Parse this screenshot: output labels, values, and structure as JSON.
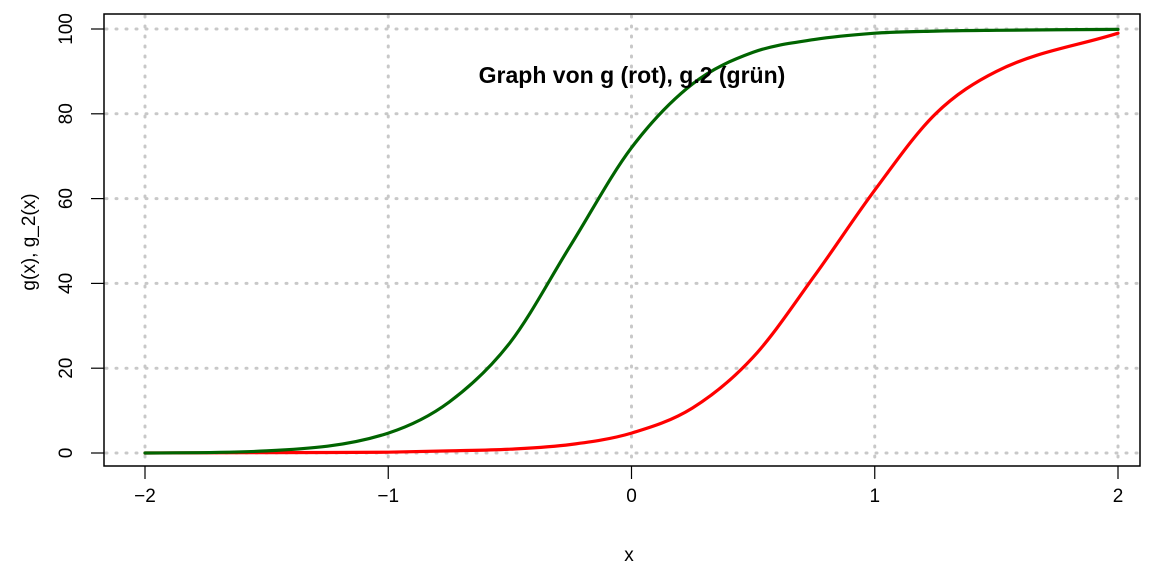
{
  "chart_data": {
    "type": "line",
    "title": "Graph von g (rot), g.2 (grün)",
    "xlabel": "x",
    "ylabel": "g(x), g_2(x)",
    "xlim": [
      -2,
      2
    ],
    "ylim": [
      0,
      100
    ],
    "x_ticks": [
      "−2",
      "−1",
      "0",
      "1",
      "2"
    ],
    "y_ticks": [
      "0",
      "20",
      "40",
      "60",
      "80",
      "100"
    ],
    "grid": "dotted",
    "x": [
      -2.0,
      -1.5,
      -1.0,
      -0.75,
      -0.5,
      -0.25,
      0.0,
      0.25,
      0.5,
      0.75,
      1.0,
      1.25,
      1.5,
      2.0
    ],
    "series": [
      {
        "name": "g",
        "color": "#ff0000",
        "values": [
          0.0,
          0.1,
          0.2,
          0.5,
          0.9,
          2.0,
          4.7,
          10.6,
          22.6,
          41.6,
          62.0,
          80.0,
          90.0,
          99.0
        ]
      },
      {
        "name": "g.2",
        "color": "#006400",
        "values": [
          0.0,
          0.5,
          4.7,
          12.0,
          26.0,
          49.0,
          72.0,
          87.0,
          94.5,
          97.5,
          99.0,
          99.5,
          99.7,
          99.9
        ]
      }
    ]
  }
}
